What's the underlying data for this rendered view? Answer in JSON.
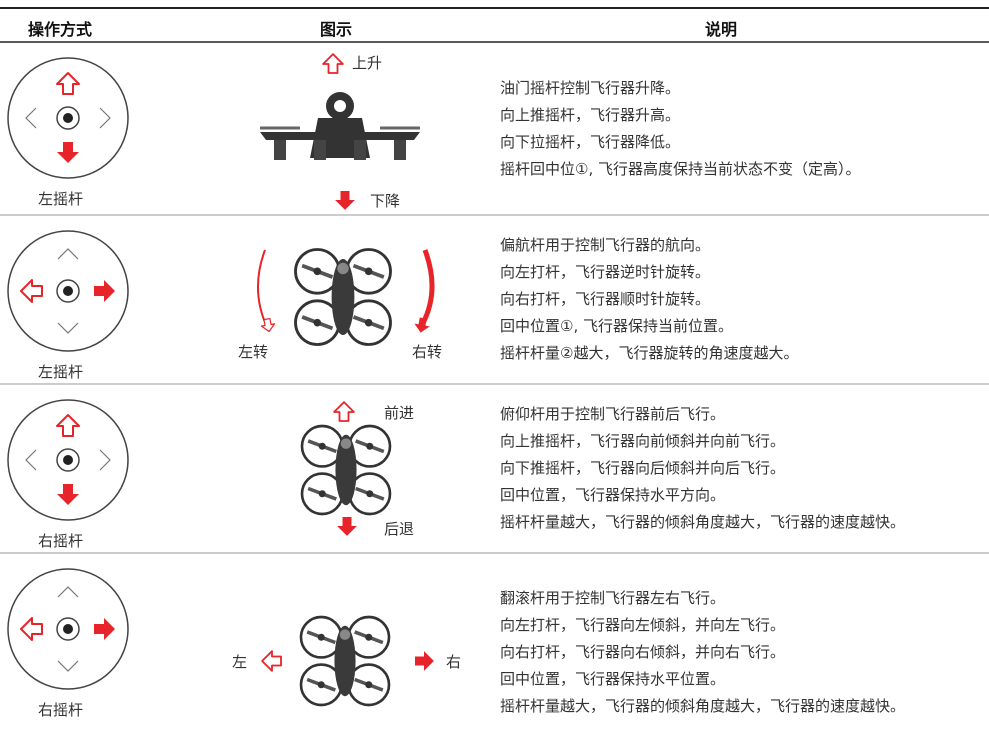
{
  "header": {
    "columns": [
      "操作方式",
      "图示",
      "说明"
    ]
  },
  "rows": [
    {
      "stick": "左摇杆",
      "labels": [
        "上升",
        "下降"
      ],
      "description": [
        "油门摇杆控制飞行器升降。",
        "向上推摇杆，飞行器升高。",
        "向下拉摇杆，飞行器降低。",
        "摇杆回中位①, 飞行器高度保持当前状态不变（定高）。"
      ]
    },
    {
      "stick": "左摇杆",
      "labels": [
        "左转",
        "右转"
      ],
      "description": [
        "偏航杆用于控制飞行器的航向。",
        "向左打杆，飞行器逆时针旋转。",
        "向右打杆，飞行器顺时针旋转。",
        "回中位置①, 飞行器保持当前位置。",
        "摇杆杆量②越大，飞行器旋转的角速度越大。"
      ]
    },
    {
      "stick": "右摇杆",
      "labels": [
        "前进",
        "后退"
      ],
      "description": [
        "俯仰杆用于控制飞行器前后飞行。",
        "向上推摇杆，飞行器向前倾斜并向前飞行。",
        "向下推摇杆，飞行器向后倾斜并向后飞行。",
        "回中位置，飞行器保持水平方向。",
        "摇杆杆量越大，飞行器的倾斜角度越大，飞行器的速度越快。"
      ]
    },
    {
      "stick": "右摇杆",
      "labels": [
        "左",
        "右"
      ],
      "description": [
        "翻滚杆用于控制飞行器左右飞行。",
        "向左打杆，飞行器向左倾斜，并向左飞行。",
        "向右打杆，飞行器向右倾斜，并向右飞行。",
        "回中位置，飞行器保持水平位置。",
        "摇杆杆量越大，飞行器的倾斜角度越大，飞行器的速度越快。"
      ]
    }
  ]
}
